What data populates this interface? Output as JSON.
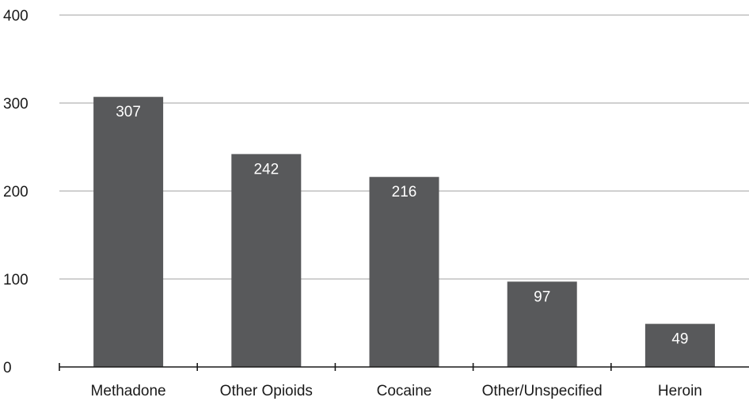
{
  "chart_data": {
    "type": "bar",
    "categories": [
      "Methadone",
      "Other Opioids",
      "Cocaine",
      "Other/Unspecified",
      "Heroin"
    ],
    "values": [
      307,
      242,
      216,
      97,
      49
    ],
    "data_labels": [
      "307",
      "242",
      "216",
      "97",
      "49"
    ],
    "y_ticks": [
      "0",
      "100",
      "200",
      "300",
      "400"
    ],
    "ylim": [
      0,
      400
    ],
    "grid": true,
    "legend": "none",
    "colors": {
      "bar": "#58595b",
      "grid": "#b3b3b3",
      "axis": "#1a1a1a",
      "label": "#ffffff"
    }
  }
}
